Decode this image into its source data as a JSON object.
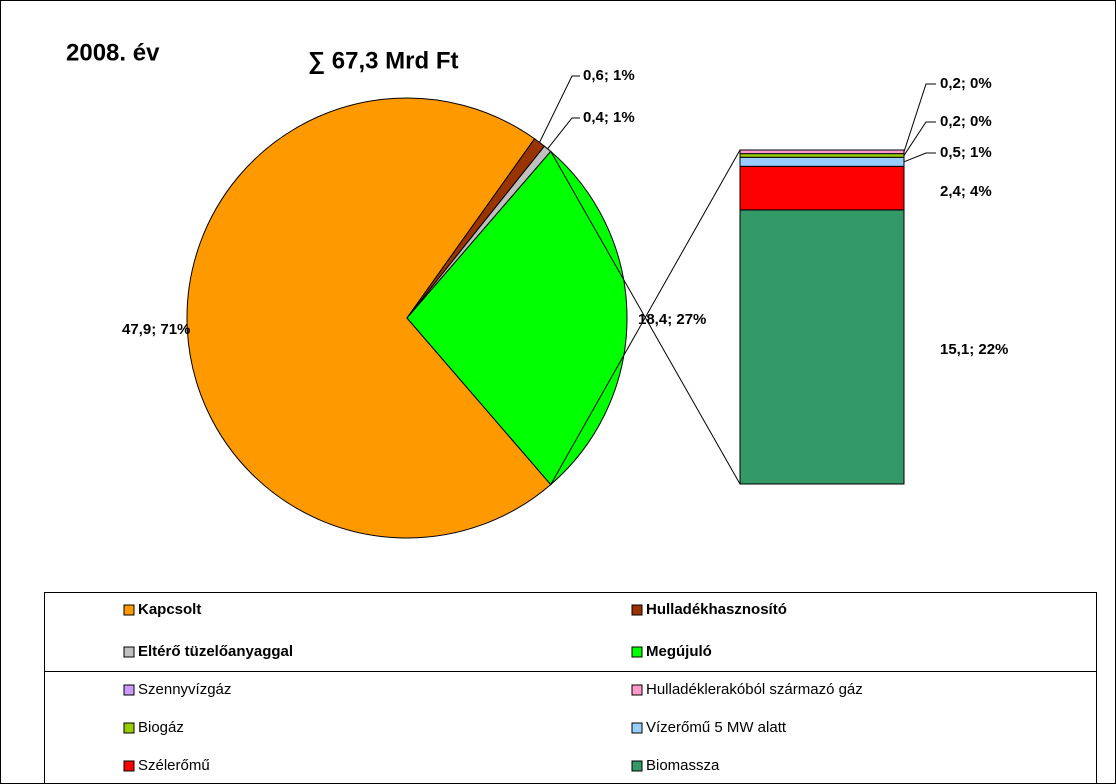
{
  "chart_data": {
    "type": "pie",
    "title": "2008. év",
    "subtitle": "∑ 67,3 Mrd Ft",
    "categories": [
      "Kapcsolt",
      "Hulladékhasznosító",
      "Eltérő tüzelőanyaggal",
      "Megújuló"
    ],
    "values": [
      47.9,
      0.6,
      0.4,
      18.4
    ],
    "value_labels": [
      "47,9; 71%",
      "0,6; 1%",
      "0,4; 1%",
      "18,4; 27%"
    ],
    "colors": [
      "#ff9900",
      "#993300",
      "#c0c0c0",
      "#00ff00"
    ],
    "breakdown": {
      "type": "bar",
      "categories": [
        "Szennyvízgáz",
        "Hulladéklerakóból származó gáz",
        "Biogáz",
        "Vízerőmű 5 MW alatt",
        "Szélerőmű",
        "Biomassza"
      ],
      "values": [
        0,
        0.2,
        0.2,
        0.5,
        2.4,
        15.1
      ],
      "value_labels": [
        null,
        "0,2; 0%",
        "0,2; 0%",
        "0,5; 1%",
        "2,4; 4%",
        "15,1; 22%"
      ],
      "colors": [
        "#cc99ff",
        "#ff99cc",
        "#99cc00",
        "#99ccff",
        "#ff0000",
        "#339966"
      ]
    }
  }
}
